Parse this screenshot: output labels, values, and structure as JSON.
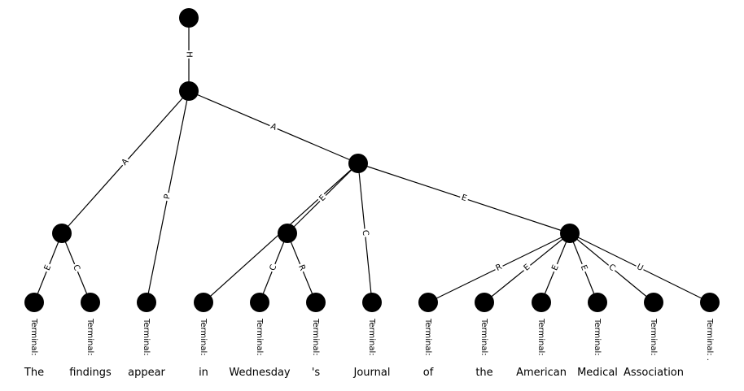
{
  "diagram": {
    "nodes": [
      {
        "id": "root",
        "kind": "internal"
      },
      {
        "id": "n1",
        "kind": "internal"
      },
      {
        "id": "n2",
        "kind": "internal"
      },
      {
        "id": "n3",
        "kind": "internal"
      },
      {
        "id": "n4",
        "kind": "internal"
      },
      {
        "id": "n5",
        "kind": "internal"
      },
      {
        "id": "t0",
        "kind": "terminal",
        "label": "Terminal:",
        "word": "The"
      },
      {
        "id": "t1",
        "kind": "terminal",
        "label": "Terminal:",
        "word": "findings"
      },
      {
        "id": "t2",
        "kind": "terminal",
        "label": "Terminal:",
        "word": "appear"
      },
      {
        "id": "t3",
        "kind": "terminal",
        "label": "Terminal:",
        "word": "in"
      },
      {
        "id": "t4",
        "kind": "terminal",
        "label": "Terminal:",
        "word": "Wednesday"
      },
      {
        "id": "t5",
        "kind": "terminal",
        "label": "Terminal:",
        "word": "'s"
      },
      {
        "id": "t6",
        "kind": "terminal",
        "label": "Terminal:",
        "word": "Journal"
      },
      {
        "id": "t7",
        "kind": "terminal",
        "label": "Terminal:",
        "word": "of"
      },
      {
        "id": "t8",
        "kind": "terminal",
        "label": "Terminal:",
        "word": "the"
      },
      {
        "id": "t9",
        "kind": "terminal",
        "label": "Terminal:",
        "word": "American"
      },
      {
        "id": "t10",
        "kind": "terminal",
        "label": "Terminal:",
        "word": "Medical"
      },
      {
        "id": "t11",
        "kind": "terminal",
        "label": "Terminal:",
        "word": "Association"
      },
      {
        "id": "t12",
        "kind": "terminal",
        "label": "Terminal: .",
        "word": ""
      }
    ],
    "edges": [
      {
        "from": "root",
        "to": "n1",
        "label": "H"
      },
      {
        "from": "n1",
        "to": "n2",
        "label": "A"
      },
      {
        "from": "n1",
        "to": "t2",
        "label": "P"
      },
      {
        "from": "n1",
        "to": "n3",
        "label": "A"
      },
      {
        "from": "n2",
        "to": "t0",
        "label": "E"
      },
      {
        "from": "n2",
        "to": "t1",
        "label": "C"
      },
      {
        "from": "n3",
        "to": "n4",
        "label": "E"
      },
      {
        "from": "n3",
        "to": "t6",
        "label": "C"
      },
      {
        "from": "n3",
        "to": "n5",
        "label": "E"
      },
      {
        "from": "n3",
        "to": "t3",
        "label": ""
      },
      {
        "from": "n4",
        "to": "t4",
        "label": "C"
      },
      {
        "from": "n4",
        "to": "t5",
        "label": "R"
      },
      {
        "from": "n5",
        "to": "t7",
        "label": "R"
      },
      {
        "from": "n5",
        "to": "t8",
        "label": "E"
      },
      {
        "from": "n5",
        "to": "t9",
        "label": "E"
      },
      {
        "from": "n5",
        "to": "t10",
        "label": "E"
      },
      {
        "from": "n5",
        "to": "t11",
        "label": "C"
      },
      {
        "from": "n5",
        "to": "t12",
        "label": "U"
      }
    ]
  }
}
